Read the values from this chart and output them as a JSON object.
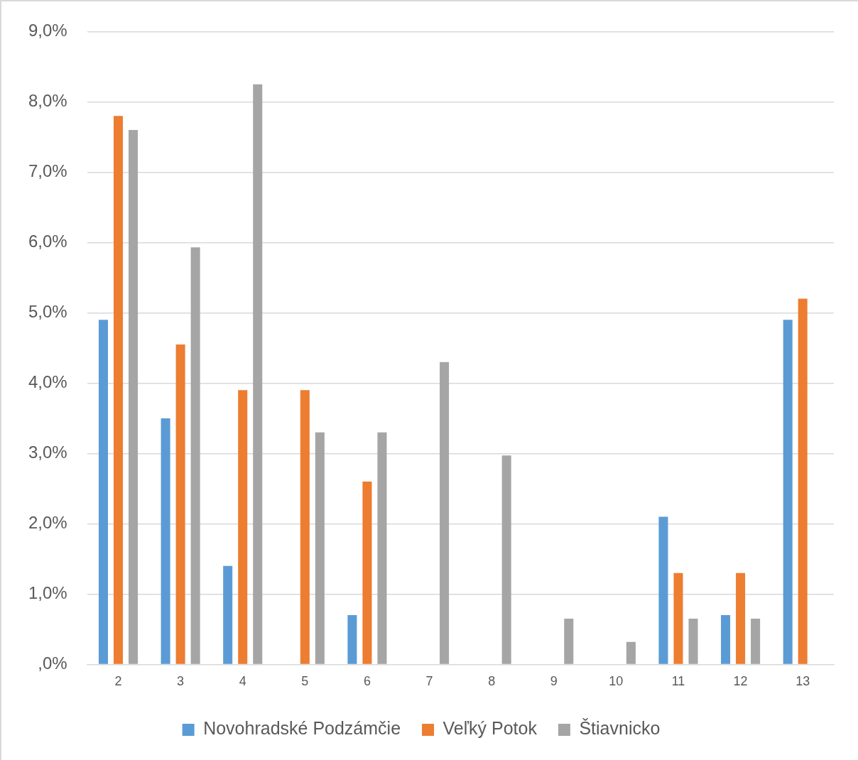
{
  "chart_data": {
    "type": "bar",
    "categories": [
      "2",
      "3",
      "4",
      "5",
      "6",
      "7",
      "8",
      "9",
      "10",
      "11",
      "12",
      "13"
    ],
    "series": [
      {
        "name": "Novohradské Podzámčie",
        "color": "#5b9bd5",
        "values": [
          4.9,
          3.5,
          1.4,
          0,
          0.7,
          0,
          0,
          0,
          0,
          2.1,
          0.7,
          4.9
        ]
      },
      {
        "name": "Veľký Potok",
        "color": "#ed7d31",
        "values": [
          7.8,
          4.55,
          3.9,
          3.9,
          2.6,
          0,
          0,
          0,
          0,
          1.3,
          1.3,
          5.2
        ]
      },
      {
        "name": "Štiavnicko",
        "color": "#a5a5a5",
        "values": [
          7.6,
          5.93,
          8.25,
          3.3,
          3.3,
          4.3,
          2.97,
          0.65,
          0.32,
          0.65,
          0.65,
          0
        ]
      }
    ],
    "ylim": [
      0,
      9
    ],
    "yticks": [
      {
        "value": 0,
        "label": ",0%"
      },
      {
        "value": 1,
        "label": "1,0%"
      },
      {
        "value": 2,
        "label": "2,0%"
      },
      {
        "value": 3,
        "label": "3,0%"
      },
      {
        "value": 4,
        "label": "4,0%"
      },
      {
        "value": 5,
        "label": "5,0%"
      },
      {
        "value": 6,
        "label": "6,0%"
      },
      {
        "value": 7,
        "label": "7,0%"
      },
      {
        "value": 8,
        "label": "8,0%"
      },
      {
        "value": 9,
        "label": "9,0%"
      }
    ],
    "grid": "y",
    "legend": "bottom"
  }
}
